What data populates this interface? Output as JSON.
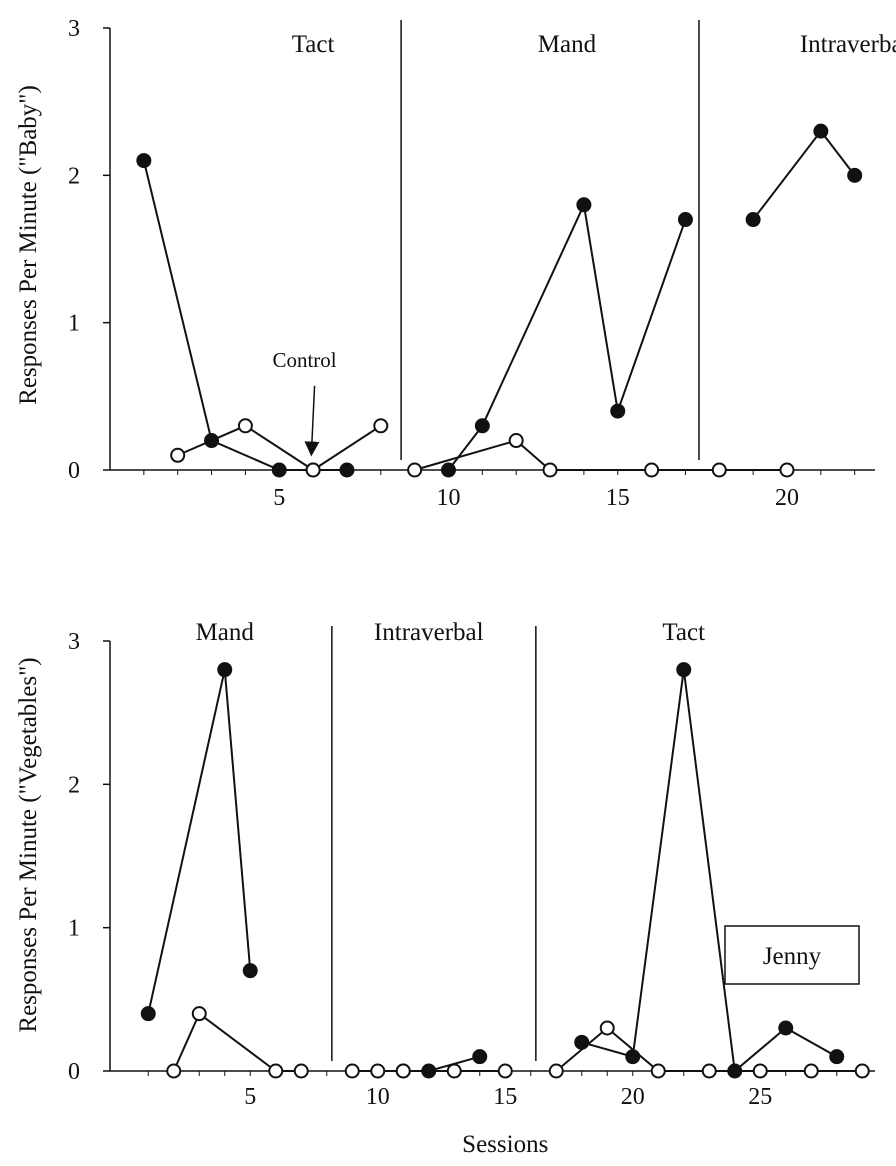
{
  "chart_data": [
    {
      "type": "line",
      "ylabel": "Responses Per Minute (\"Baby\")",
      "xlabel": "",
      "ylim": [
        0,
        3
      ],
      "y_ticks": [
        "0",
        "1",
        "2",
        "3"
      ],
      "x_ticks": [
        "5",
        "10",
        "15",
        "20"
      ],
      "x_tick_values": [
        5,
        10,
        15,
        20
      ],
      "phases": [
        {
          "label": "Tact",
          "label_x": 6
        },
        {
          "label": "Mand",
          "label_x": 13.5
        },
        {
          "label": "Intraverbal",
          "label_x": 22
        }
      ],
      "phase_lines": [
        8.6,
        17.4
      ],
      "annotation": {
        "text": "Control",
        "x": 5.6,
        "y": 0.68,
        "arrow_to_x": 5.95,
        "arrow_to_y": 0.01
      },
      "series": [
        {
          "marker": "filled",
          "segments": [
            [
              [
                1,
                2.1
              ],
              [
                3,
                0.2
              ],
              [
                5,
                0
              ],
              [
                6,
                0
              ],
              [
                7,
                0
              ]
            ],
            [
              [
                10,
                0
              ],
              [
                11,
                0.3
              ],
              [
                14,
                1.8
              ],
              [
                15,
                0.4
              ],
              [
                17,
                1.7
              ]
            ],
            [
              [
                19,
                1.7
              ],
              [
                21,
                2.3
              ],
              [
                22,
                2.0
              ]
            ]
          ]
        },
        {
          "marker": "open",
          "segments": [
            [
              [
                2,
                0.1
              ],
              [
                4,
                0.3
              ],
              [
                6,
                0
              ],
              [
                8,
                0.3
              ]
            ],
            [
              [
                9,
                0
              ],
              [
                12,
                0.2
              ],
              [
                13,
                0
              ],
              [
                16,
                0
              ],
              [
                18,
                0
              ],
              [
                20,
                0
              ]
            ]
          ]
        }
      ]
    },
    {
      "type": "line",
      "ylabel": "Responses Per Minute (\"Vegetables\")",
      "xlabel": "Sessions",
      "ylim": [
        0,
        3
      ],
      "y_ticks": [
        "0",
        "1",
        "2",
        "3"
      ],
      "x_ticks": [
        "5",
        "10",
        "15",
        "20",
        "25"
      ],
      "x_tick_values": [
        5,
        10,
        15,
        20,
        25
      ],
      "phases": [
        {
          "label": "Mand",
          "label_x": 4
        },
        {
          "label": "Intraverbal",
          "label_x": 12
        },
        {
          "label": "Tact",
          "label_x": 22
        }
      ],
      "phase_lines": [
        8.2,
        16.2
      ],
      "legend_box": {
        "label": "Jenny",
        "placement": "bottom-right"
      },
      "series": [
        {
          "marker": "filled",
          "segments": [
            [
              [
                1,
                0.4
              ],
              [
                4,
                2.8
              ],
              [
                5,
                0.7
              ]
            ],
            [
              [
                11,
                0
              ],
              [
                12,
                0
              ],
              [
                14,
                0.1
              ]
            ],
            [
              [
                18,
                0.2
              ],
              [
                20,
                0.1
              ],
              [
                22,
                2.8
              ],
              [
                24,
                0
              ],
              [
                26,
                0.3
              ],
              [
                28,
                0.1
              ]
            ]
          ]
        },
        {
          "marker": "open",
          "segments": [
            [
              [
                2,
                0
              ],
              [
                3,
                0.4
              ],
              [
                6,
                0
              ],
              [
                7,
                0
              ]
            ],
            [
              [
                9,
                0
              ],
              [
                10,
                0
              ],
              [
                11,
                0
              ],
              [
                13,
                0
              ],
              [
                15,
                0
              ]
            ],
            [
              [
                17,
                0
              ],
              [
                19,
                0.3
              ],
              [
                21,
                0
              ],
              [
                23,
                0
              ],
              [
                25,
                0
              ],
              [
                27,
                0
              ],
              [
                29,
                0
              ]
            ]
          ]
        }
      ]
    }
  ]
}
